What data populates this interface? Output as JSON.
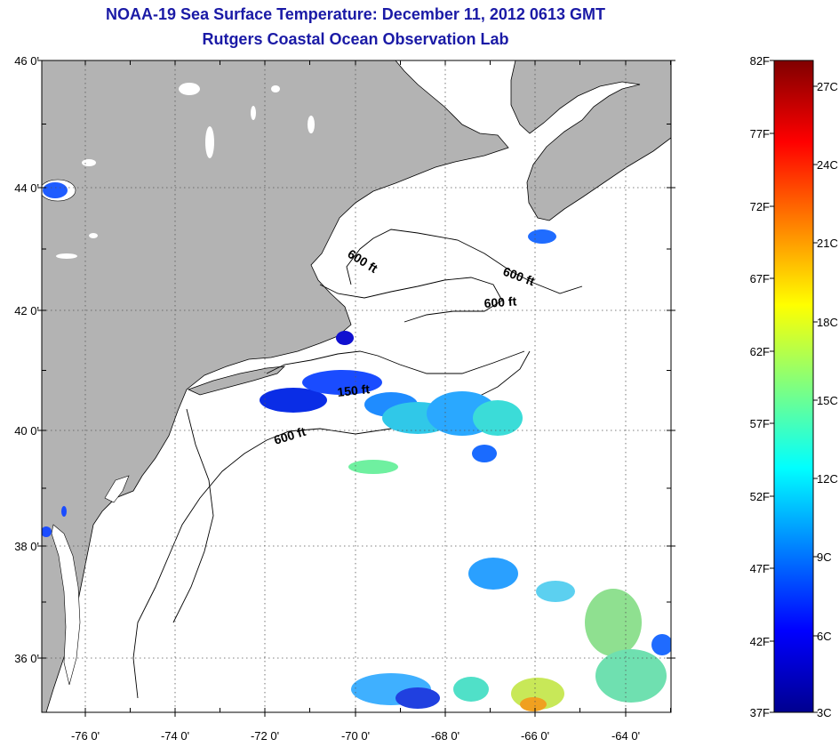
{
  "title": "NOAA-19 Sea Surface Temperature:  December 11, 2012 0613 GMT",
  "subtitle": "Rutgers Coastal Ocean Observation Lab",
  "map": {
    "lon_range": [
      -77,
      -63
    ],
    "lat_range": [
      35,
      46
    ],
    "lat_ticks": [
      "46 0'",
      "44 0'",
      "42 0'",
      "40 0'",
      "38 0'",
      "36 0'"
    ],
    "lon_ticks": [
      "-76 0'",
      "-74 0'",
      "-72 0'",
      "-70 0'",
      "-68 0'",
      "-66 0'",
      "-64 0'"
    ],
    "isobath_labels": [
      "600 ft",
      "600 ft",
      "600 ft",
      "150 ft",
      "600 ft"
    ],
    "land_color": "#b3b3b3",
    "ocean_color": "#ffffff",
    "grid": "dotted"
  },
  "colorbar": {
    "range_f": [
      37,
      82
    ],
    "range_c": [
      3,
      28
    ],
    "f_labels": [
      "82F",
      "77F",
      "72F",
      "67F",
      "62F",
      "57F",
      "52F",
      "47F",
      "42F",
      "37F"
    ],
    "c_labels": [
      "27C",
      "24C",
      "21C",
      "18C",
      "15C",
      "12C",
      "9C",
      "6C",
      "3C"
    ],
    "colormap": "jet"
  }
}
